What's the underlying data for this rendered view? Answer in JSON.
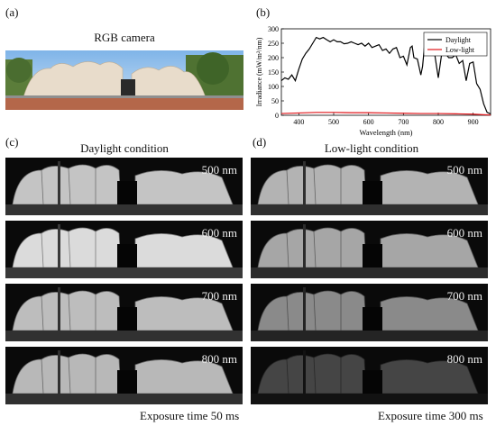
{
  "panels": {
    "a": {
      "label": "(a)",
      "title": "RGB camera"
    },
    "b": {
      "label": "(b)"
    },
    "c": {
      "label": "(c)",
      "title": "Daylight condition",
      "wavelengths": [
        "500 nm",
        "600 nm",
        "700 nm",
        "800 nm"
      ],
      "exposure": "Exposure time 50 ms",
      "brightness": [
        0.85,
        0.95,
        0.82,
        0.8
      ]
    },
    "d": {
      "label": "(d)",
      "title": "Low-light condition",
      "wavelengths": [
        "500 nm",
        "600 nm",
        "700 nm",
        "800 nm"
      ],
      "exposure": "Exposure time 300 ms",
      "brightness": [
        0.78,
        0.72,
        0.6,
        0.3
      ]
    }
  },
  "chart_data": {
    "type": "line",
    "xlabel": "Wavelength (nm)",
    "ylabel": "Irradiance (mW/m²/nm)",
    "xlim": [
      350,
      950
    ],
    "ylim": [
      0,
      300
    ],
    "xticks": [
      "400",
      "500",
      "600",
      "700",
      "800",
      "900"
    ],
    "yticks": [
      "0",
      "50",
      "100",
      "150",
      "200",
      "250",
      "300"
    ],
    "legend_position": "top-right",
    "series": [
      {
        "name": "Daylight",
        "color": "#000000",
        "x": [
          350,
          360,
          370,
          380,
          390,
          400,
          410,
          420,
          430,
          440,
          450,
          460,
          470,
          480,
          490,
          500,
          510,
          520,
          530,
          540,
          550,
          560,
          570,
          580,
          590,
          600,
          610,
          620,
          630,
          640,
          650,
          660,
          670,
          680,
          690,
          700,
          710,
          720,
          725,
          730,
          740,
          750,
          755,
          760,
          765,
          770,
          780,
          790,
          800,
          810,
          815,
          820,
          830,
          840,
          850,
          860,
          870,
          880,
          890,
          900,
          910,
          920,
          930,
          940,
          950
        ],
        "y": [
          120,
          130,
          125,
          140,
          120,
          160,
          195,
          215,
          230,
          250,
          270,
          265,
          270,
          262,
          255,
          262,
          255,
          255,
          248,
          250,
          255,
          250,
          245,
          250,
          240,
          250,
          235,
          240,
          245,
          225,
          230,
          215,
          230,
          235,
          200,
          205,
          175,
          235,
          240,
          200,
          195,
          140,
          170,
          235,
          225,
          240,
          210,
          210,
          130,
          215,
          225,
          215,
          200,
          200,
          210,
          180,
          190,
          120,
          180,
          185,
          110,
          90,
          40,
          10,
          5
        ]
      },
      {
        "name": "Low-light",
        "color": "#e0161b",
        "x": [
          350,
          400,
          450,
          500,
          550,
          600,
          650,
          700,
          750,
          800,
          850,
          900,
          930,
          950
        ],
        "y": [
          6,
          8,
          10,
          10,
          9,
          9,
          8,
          7,
          6,
          6,
          5,
          4,
          2,
          1
        ]
      }
    ]
  }
}
